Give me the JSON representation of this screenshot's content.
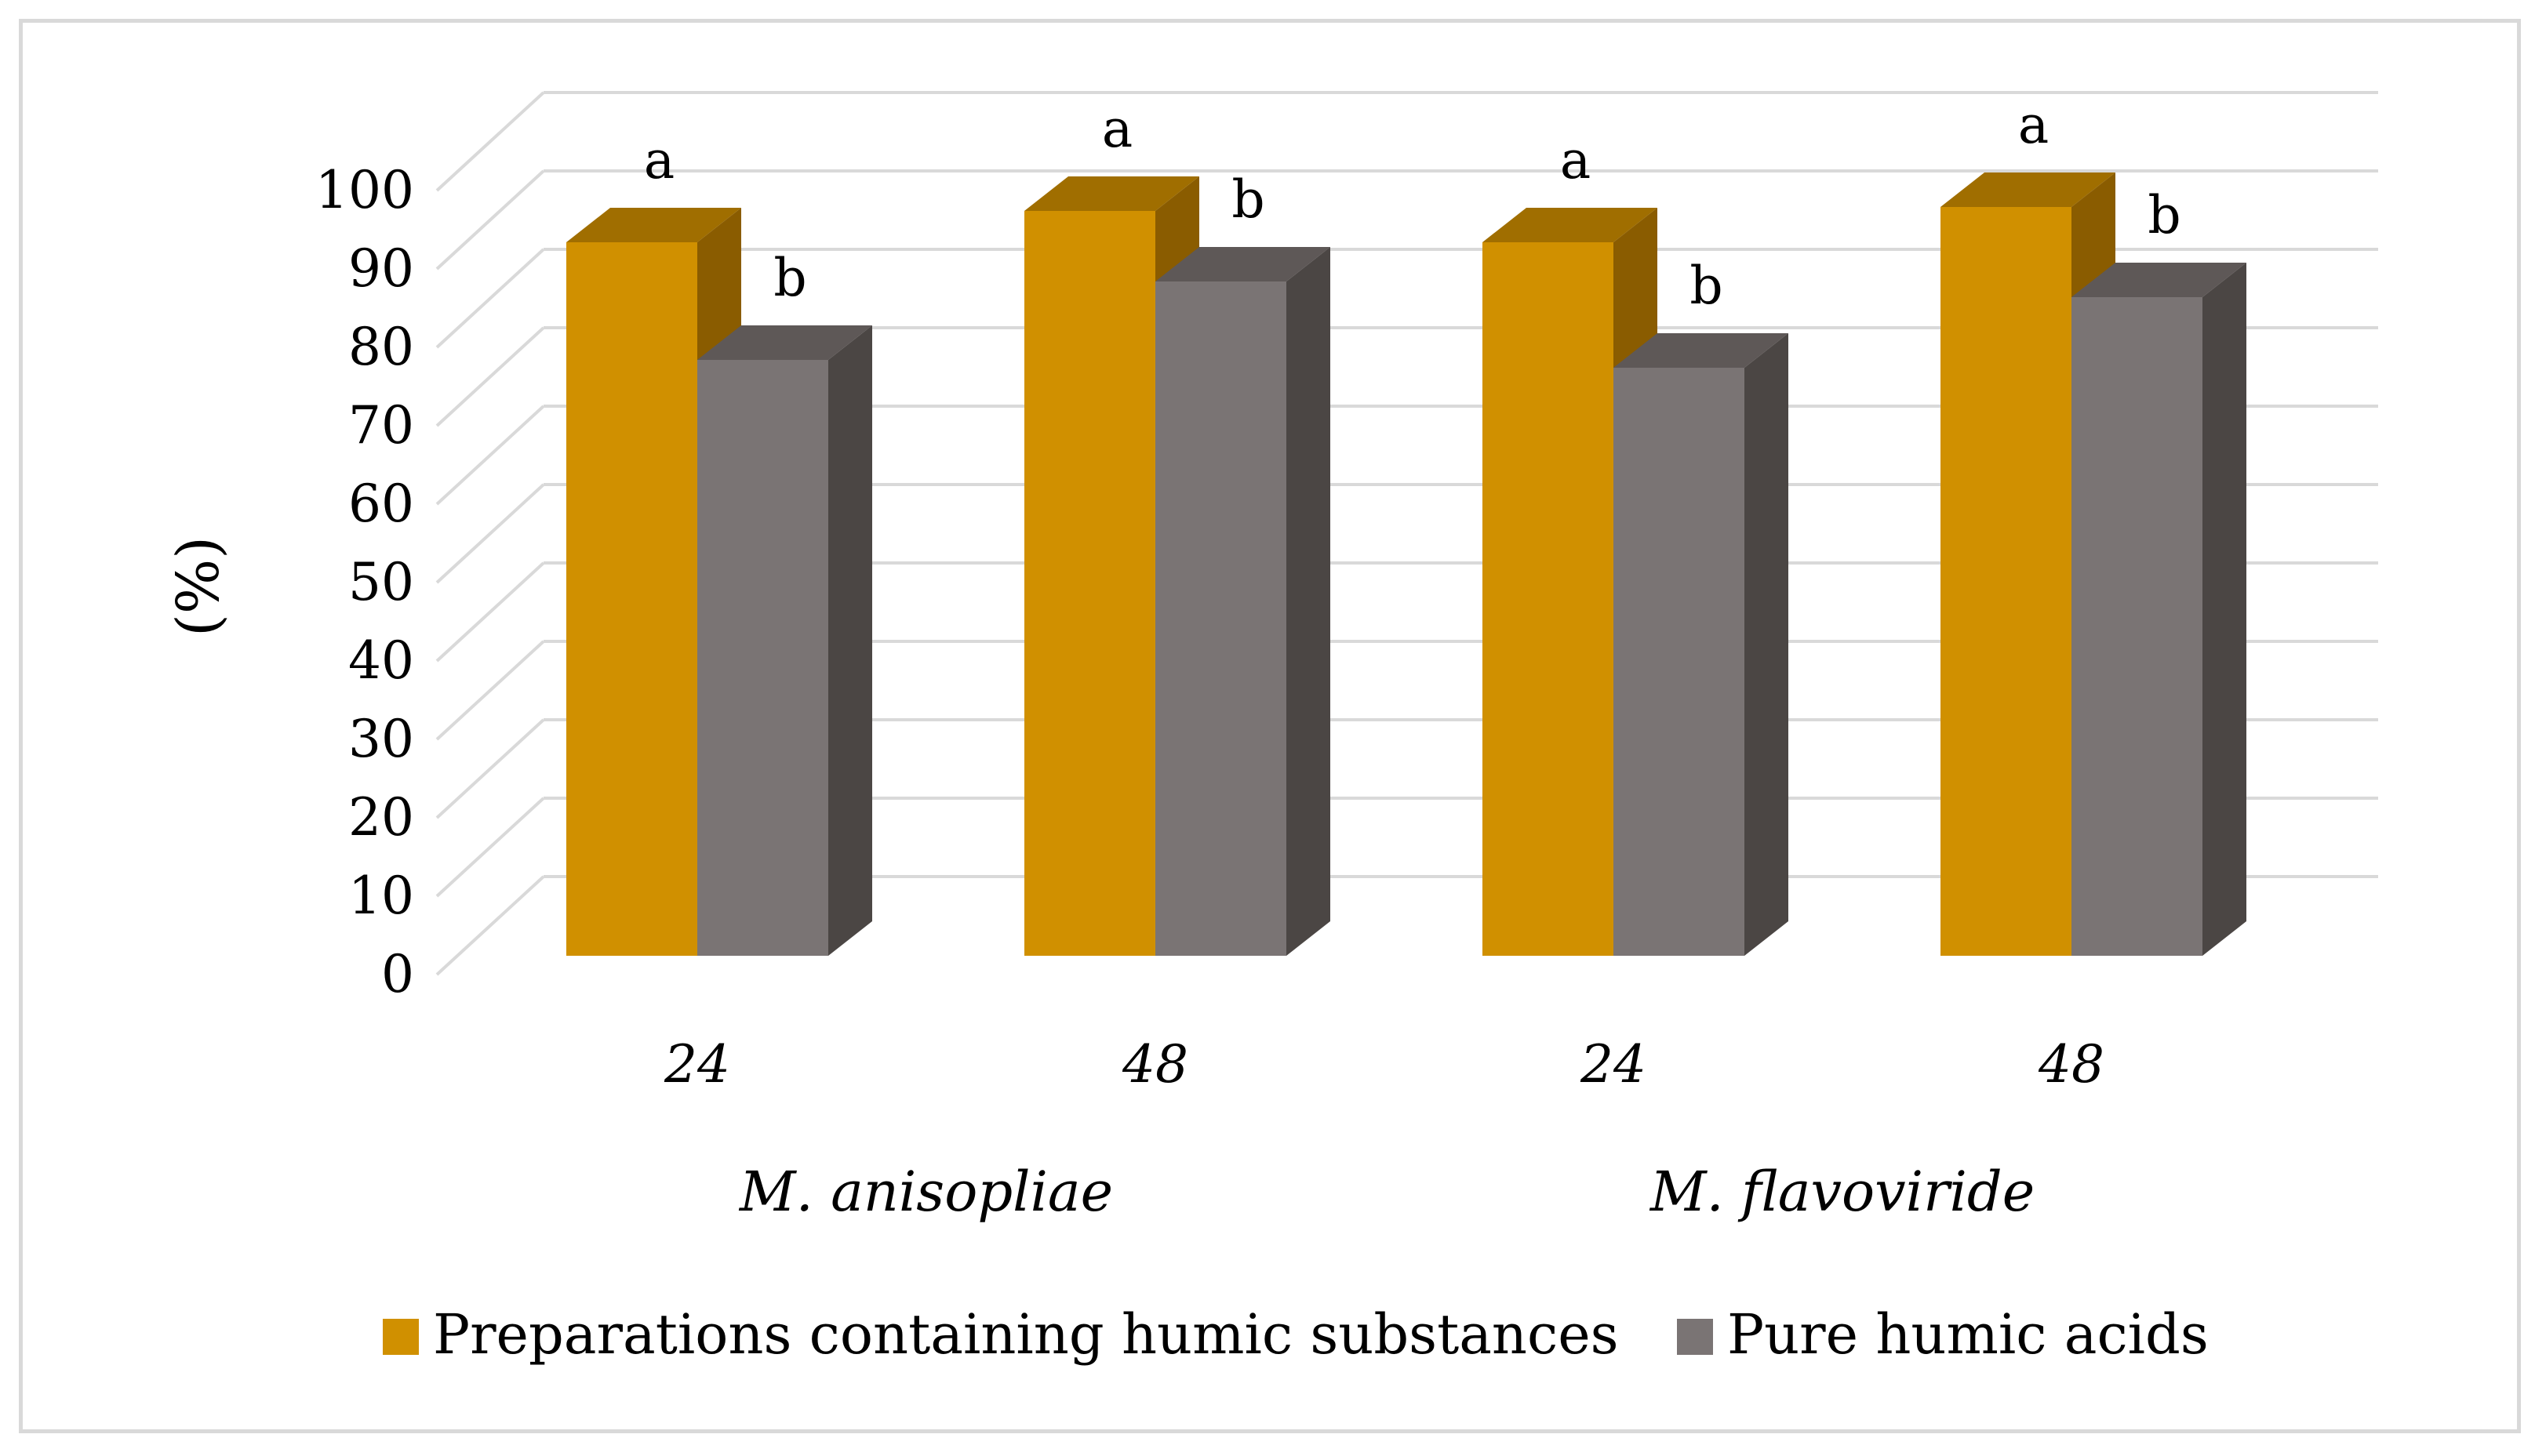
{
  "chart_data": {
    "type": "bar",
    "title": "",
    "ylabel": "(%)",
    "xlabel": "",
    "ylim": [
      0,
      100
    ],
    "yticks": [
      0,
      10,
      20,
      30,
      40,
      50,
      60,
      70,
      80,
      90,
      100
    ],
    "grid": true,
    "three_d": true,
    "legend_position": "bottom",
    "categories": [
      "24",
      "48",
      "24",
      "48"
    ],
    "groups": [
      {
        "label": "M. anisopliae",
        "categories": [
          0,
          1
        ]
      },
      {
        "label": "M. flavoviride",
        "categories": [
          2,
          3
        ]
      }
    ],
    "series": [
      {
        "name": "Preparations containing humic substances",
        "color": "#d09000",
        "values": [
          91,
          95,
          91,
          95.5
        ],
        "labels": [
          "a",
          "a",
          "a",
          "a"
        ]
      },
      {
        "name": "Pure humic acids",
        "color": "#7a7474",
        "values": [
          76,
          86,
          75,
          84
        ],
        "labels": [
          "b",
          "b",
          "b",
          "b"
        ]
      }
    ]
  }
}
